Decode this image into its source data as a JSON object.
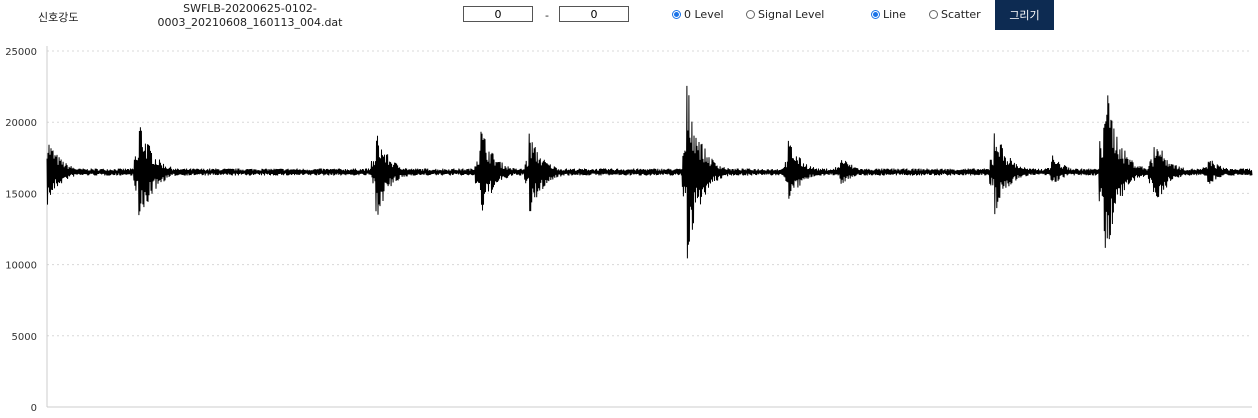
{
  "toolbar": {
    "title_label": "신호강도",
    "filename_line1": "SWFLB-20200625-0102-",
    "filename_line2": "0003_20210608_160113_004.dat",
    "range_start": "0",
    "range_separator": "-",
    "range_end": "0",
    "level_options": [
      {
        "label": "0 Level",
        "selected": true
      },
      {
        "label": "Signal Level",
        "selected": false
      }
    ],
    "plot_options": [
      {
        "label": "Line",
        "selected": true
      },
      {
        "label": "Scatter",
        "selected": false
      }
    ],
    "draw_button": "그리기"
  },
  "chart_data": {
    "type": "line",
    "title": "",
    "xlabel": "",
    "ylabel": "",
    "ylim": [
      0,
      25000
    ],
    "yticks": [
      "25000",
      "20000",
      "15000",
      "10000",
      "5000",
      "0"
    ],
    "grid": true,
    "line_color": "#000000",
    "baseline": 16500,
    "bursts": [
      {
        "x": 0.0,
        "peak_high": 19200,
        "peak_low": 14000
      },
      {
        "x": 0.076,
        "peak_high": 20800,
        "peak_low": 12000
      },
      {
        "x": 0.273,
        "peak_high": 19500,
        "peak_low": 13000
      },
      {
        "x": 0.359,
        "peak_high": 20200,
        "peak_low": 12800
      },
      {
        "x": 0.4,
        "peak_high": 19400,
        "peak_low": 13000
      },
      {
        "x": 0.531,
        "peak_high": 23000,
        "peak_low": 10000
      },
      {
        "x": 0.615,
        "peak_high": 19000,
        "peak_low": 14000
      },
      {
        "x": 0.658,
        "peak_high": 17800,
        "peak_low": 15500
      },
      {
        "x": 0.786,
        "peak_high": 20000,
        "peak_low": 13200
      },
      {
        "x": 0.833,
        "peak_high": 17900,
        "peak_low": 15400
      },
      {
        "x": 0.877,
        "peak_high": 24000,
        "peak_low": 9200
      },
      {
        "x": 0.918,
        "peak_high": 19500,
        "peak_low": 13500
      },
      {
        "x": 0.963,
        "peak_high": 17700,
        "peak_low": 15500
      }
    ]
  }
}
